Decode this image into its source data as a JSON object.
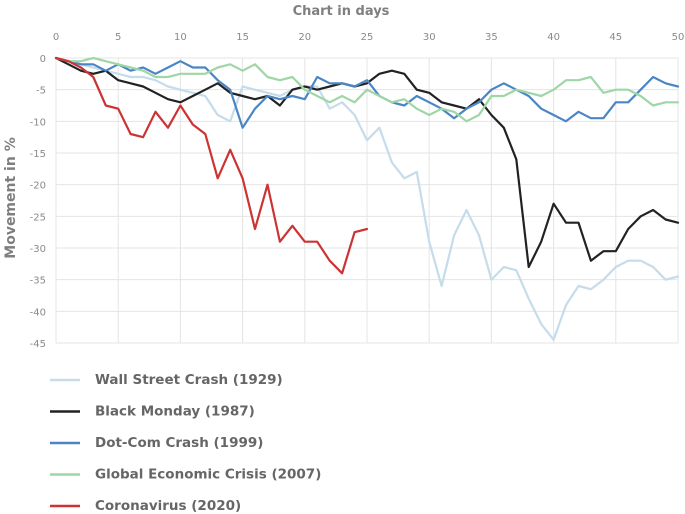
{
  "chart_data": {
    "type": "line",
    "title": "Chart in days",
    "xlabel": "",
    "ylabel": "Movement in %",
    "xlim": [
      0,
      50
    ],
    "ylim": [
      -45,
      0
    ],
    "xticks": [
      0,
      5,
      10,
      15,
      20,
      25,
      30,
      35,
      40,
      45,
      50
    ],
    "yticks": [
      0,
      -5,
      -10,
      -15,
      -20,
      -25,
      -30,
      -35,
      -40,
      -45
    ],
    "grid": true,
    "x_axis_position": "top",
    "legend_position": "bottom-left",
    "series": [
      {
        "name": "Wall Street Crash (1929)",
        "color": "#c5dcea",
        "x": [
          0,
          1,
          2,
          3,
          4,
          5,
          6,
          7,
          8,
          9,
          10,
          11,
          12,
          13,
          14,
          15,
          16,
          17,
          18,
          19,
          20,
          21,
          22,
          23,
          24,
          25,
          26,
          27,
          28,
          29,
          30,
          31,
          32,
          33,
          34,
          35,
          36,
          37,
          38,
          39,
          40,
          41,
          42,
          43,
          44,
          45,
          46,
          47,
          48,
          49,
          50
        ],
        "y": [
          0,
          -0.5,
          -1,
          -1.5,
          -2,
          -2.5,
          -3,
          -3,
          -3.5,
          -4.5,
          -5,
          -5.5,
          -6,
          -9,
          -10,
          -4.5,
          -5,
          -5.5,
          -6,
          -5,
          -4.5,
          -4.5,
          -8,
          -7,
          -9,
          -13,
          -11,
          -16.5,
          -19,
          -18,
          -29,
          -36,
          -28,
          -24,
          -28,
          -35,
          -33,
          -33.5,
          -38,
          -42,
          -44.5,
          -39,
          -36,
          -36.5,
          -35,
          -33,
          -32,
          -32,
          -33,
          -35,
          -34.5
        ]
      },
      {
        "name": "Black Monday (1987)",
        "color": "#222222",
        "x": [
          0,
          1,
          2,
          3,
          4,
          5,
          6,
          7,
          8,
          9,
          10,
          11,
          12,
          13,
          14,
          15,
          16,
          17,
          18,
          19,
          20,
          21,
          22,
          23,
          24,
          25,
          26,
          27,
          28,
          29,
          30,
          31,
          32,
          33,
          34,
          35,
          36,
          37,
          38,
          39,
          40,
          41,
          42,
          43,
          44,
          45,
          46,
          47,
          48,
          49,
          50
        ],
        "y": [
          0,
          -1,
          -2,
          -2.5,
          -2,
          -3.5,
          -4,
          -4.5,
          -5.5,
          -6.5,
          -7,
          -6,
          -5,
          -4,
          -5.5,
          -6,
          -6.5,
          -6,
          -7.5,
          -5,
          -4.5,
          -5,
          -4.5,
          -4,
          -4.5,
          -4,
          -2.5,
          -2,
          -2.5,
          -5,
          -5.5,
          -7,
          -7.5,
          -8,
          -6.5,
          -9,
          -11,
          -16,
          -33,
          -29,
          -23,
          -26,
          -26,
          -32,
          -30.5,
          -30.5,
          -27,
          -25,
          -24,
          -25.5,
          -26
        ]
      },
      {
        "name": "Dot-Com Crash (1999)",
        "color": "#4a86c5",
        "x": [
          0,
          1,
          2,
          3,
          4,
          5,
          6,
          7,
          8,
          9,
          10,
          11,
          12,
          13,
          14,
          15,
          16,
          17,
          18,
          19,
          20,
          21,
          22,
          23,
          24,
          25,
          26,
          27,
          28,
          29,
          30,
          31,
          32,
          33,
          34,
          35,
          36,
          37,
          38,
          39,
          40,
          41,
          42,
          43,
          44,
          45,
          46,
          47,
          48,
          49,
          50
        ],
        "y": [
          0,
          -0.5,
          -1,
          -1,
          -2,
          -1,
          -2,
          -1.5,
          -2.5,
          -1.5,
          -0.5,
          -1.5,
          -1.5,
          -3.5,
          -5,
          -11,
          -8,
          -6,
          -6.5,
          -6,
          -6.5,
          -3,
          -4,
          -4,
          -4.5,
          -3.5,
          -6,
          -7,
          -7.5,
          -6,
          -7,
          -8,
          -9.5,
          -8,
          -7,
          -5,
          -4,
          -5,
          -6,
          -8,
          -9,
          -10,
          -8.5,
          -9.5,
          -9.5,
          -7,
          -7,
          -5,
          -3,
          -4,
          -4.5
        ]
      },
      {
        "name": "Global Economic Crisis (2007)",
        "color": "#9fd6a6",
        "x": [
          0,
          1,
          2,
          3,
          4,
          5,
          6,
          7,
          8,
          9,
          10,
          11,
          12,
          13,
          14,
          15,
          16,
          17,
          18,
          19,
          20,
          21,
          22,
          23,
          24,
          25,
          26,
          27,
          28,
          29,
          30,
          31,
          32,
          33,
          34,
          35,
          36,
          37,
          38,
          39,
          40,
          41,
          42,
          43,
          44,
          45,
          46,
          47,
          48,
          49,
          50
        ],
        "y": [
          0,
          -0.5,
          -0.5,
          0,
          -0.5,
          -1,
          -1.5,
          -2,
          -3,
          -3,
          -2.5,
          -2.5,
          -2.5,
          -1.5,
          -1,
          -2,
          -1,
          -3,
          -3.5,
          -3,
          -5,
          -6,
          -7,
          -6,
          -7,
          -5,
          -6,
          -7,
          -6.5,
          -8,
          -9,
          -8,
          -8.5,
          -10,
          -9,
          -6,
          -6,
          -5,
          -5.5,
          -6,
          -5,
          -3.5,
          -3.5,
          -3,
          -5.5,
          -5,
          -5,
          -6,
          -7.5,
          -7,
          -7
        ]
      },
      {
        "name": "Coronavirus (2020)",
        "color": "#cc3333",
        "x": [
          0,
          1,
          2,
          3,
          4,
          5,
          6,
          7,
          8,
          9,
          10,
          11,
          12,
          13,
          14,
          15,
          16,
          17,
          18,
          19,
          20,
          21,
          22,
          23,
          24,
          25
        ],
        "y": [
          0,
          -0.5,
          -1.5,
          -3,
          -7.5,
          -8,
          -12,
          -12.5,
          -8.5,
          -11,
          -7.5,
          -10.5,
          -12,
          -19,
          -14.5,
          -19,
          -27,
          -20,
          -29,
          -26.5,
          -29,
          -29,
          -32,
          -34,
          -27.5,
          -27
        ]
      }
    ]
  }
}
